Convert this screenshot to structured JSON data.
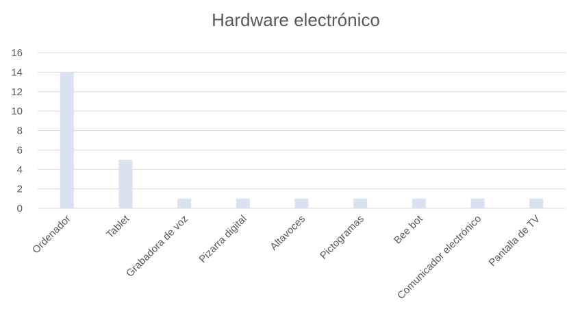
{
  "chart_data": {
    "type": "bar",
    "title": "Hardware electrónico",
    "xlabel": "",
    "ylabel": "",
    "ylim": [
      0,
      16
    ],
    "yticks": [
      0,
      2,
      4,
      6,
      8,
      10,
      12,
      14,
      16
    ],
    "grid": true,
    "legend": "none",
    "bar_color": "#dae1f1",
    "grid_color": "#d9d9d9",
    "text_color": "#595959",
    "categories": [
      "Ordenador",
      "Tablet",
      "Grabadora de voz",
      "Pizarra digital",
      "Altavoces",
      "Pictogramas",
      "Bee bot",
      "Comunicador electrónico",
      "Pantalla de TV"
    ],
    "values": [
      14,
      5,
      1,
      1,
      1,
      1,
      1,
      1,
      1
    ]
  }
}
